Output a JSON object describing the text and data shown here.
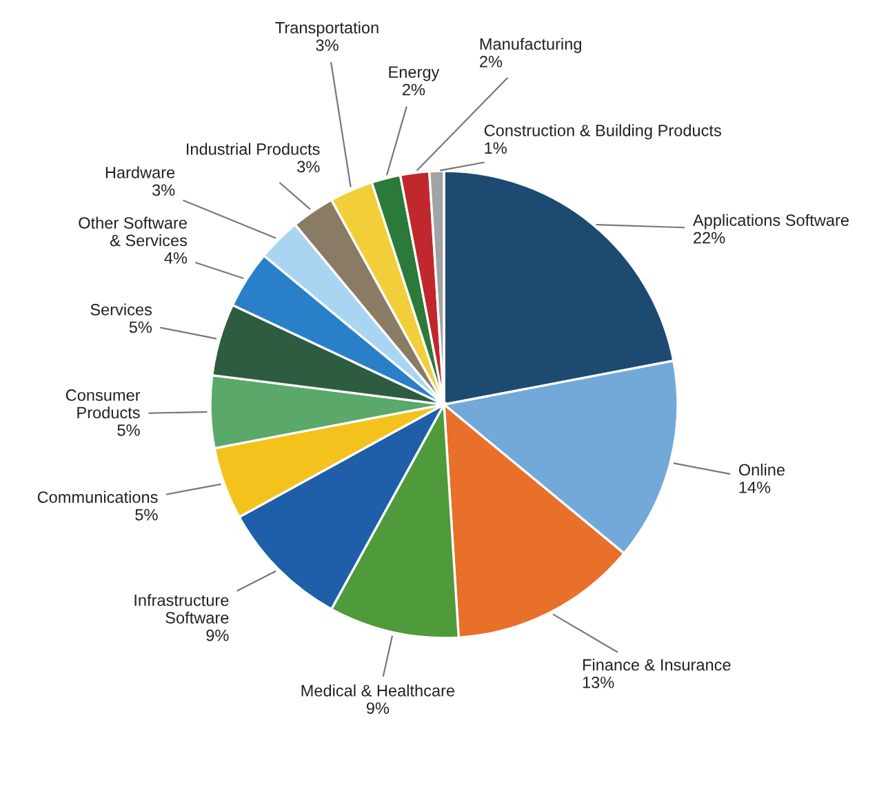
{
  "chart_data": {
    "type": "pie",
    "categories": [
      "Applications Software",
      "Online",
      "Finance & Insurance",
      "Medical & Healthcare",
      "Infrastructure\nSoftware",
      "Communications",
      "Consumer\nProducts",
      "Services",
      "Other Software\n& Services",
      "Hardware",
      "Industrial Products",
      "Transportation",
      "Energy",
      "Manufacturing",
      "Construction & Building Products"
    ],
    "values": [
      22,
      14,
      13,
      9,
      9,
      5,
      5,
      5,
      4,
      3,
      3,
      3,
      2,
      2,
      1
    ],
    "value_labels": [
      "22%",
      "14%",
      "13%",
      "9%",
      "9%",
      "5%",
      "5%",
      "5%",
      "4%",
      "3%",
      "3%",
      "3%",
      "2%",
      "2%",
      "1%"
    ],
    "colors": [
      "#1d4a70",
      "#72a9d8",
      "#e8702a",
      "#4f9a3a",
      "#1f5ea8",
      "#f4c21c",
      "#5aa86a",
      "#2d5c40",
      "#2a7fc9",
      "#a9d5f2",
      "#8a7c64",
      "#f2cf3a",
      "#2b7a3a",
      "#c0282e",
      "#a3a3a3"
    ]
  }
}
